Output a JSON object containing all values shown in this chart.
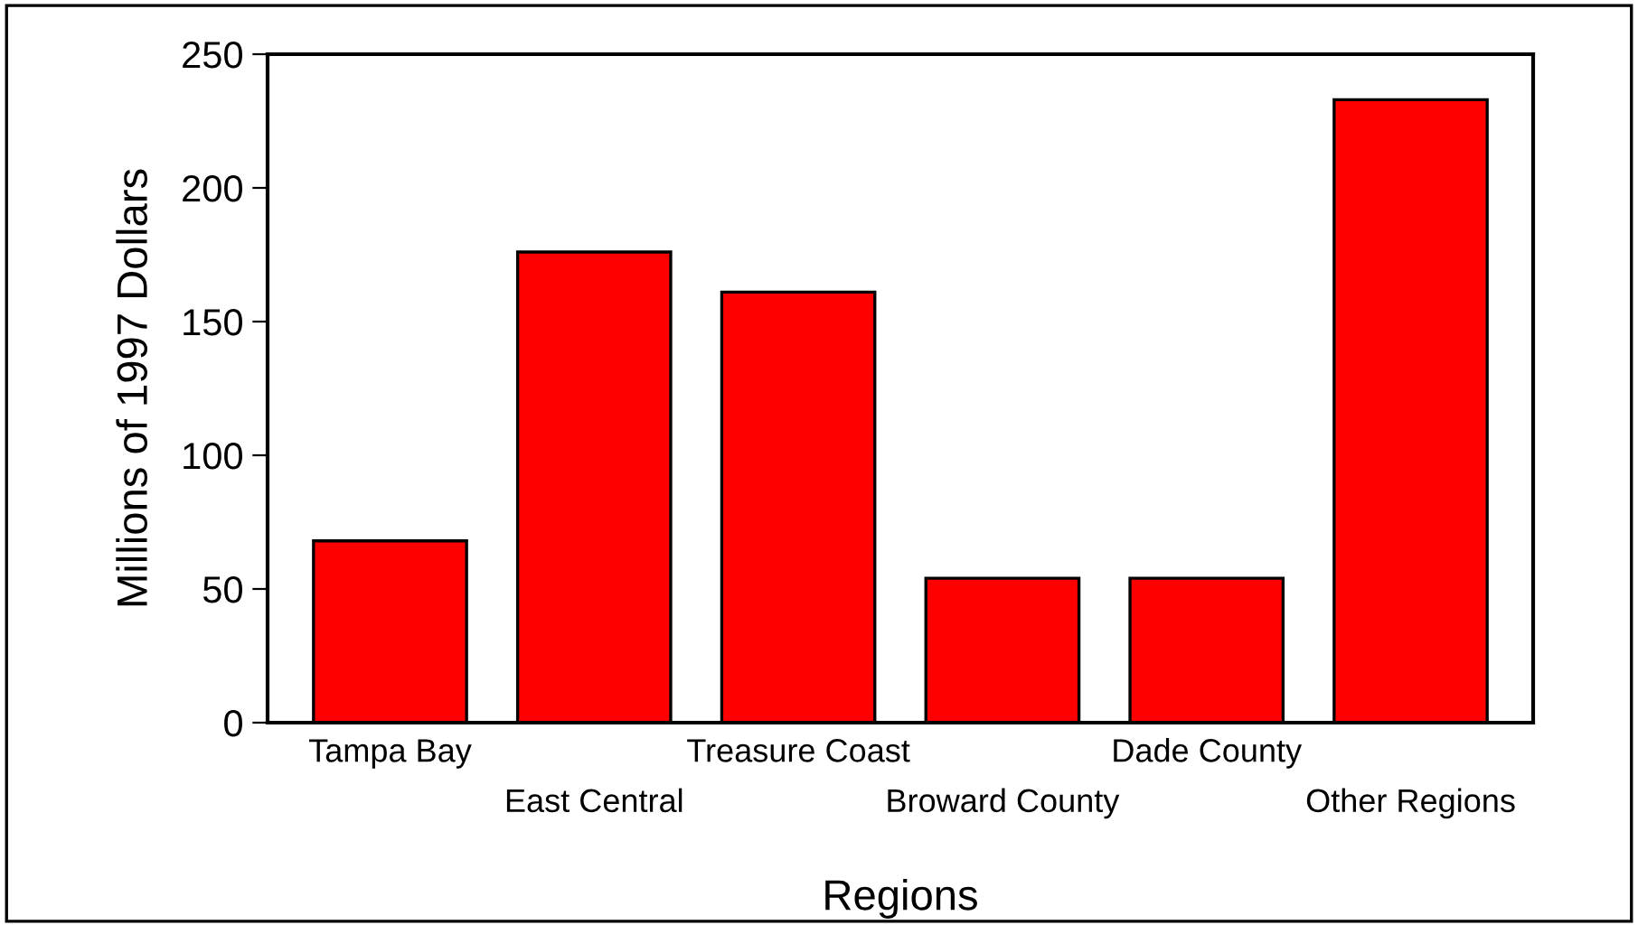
{
  "chart_data": {
    "type": "bar",
    "xlabel": "Regions",
    "ylabel": "Millions of 1997 Dollars",
    "categories": [
      "Tampa Bay",
      "East Central",
      "Treasure Coast",
      "Broward County",
      "Dade County",
      "Other Regions"
    ],
    "values": [
      68,
      176,
      161,
      54,
      54,
      233
    ],
    "color": "#ff0000",
    "ylim": [
      0,
      250
    ],
    "yticks": [
      0,
      50,
      100,
      150,
      200,
      250
    ],
    "grid": false,
    "legend": false
  }
}
